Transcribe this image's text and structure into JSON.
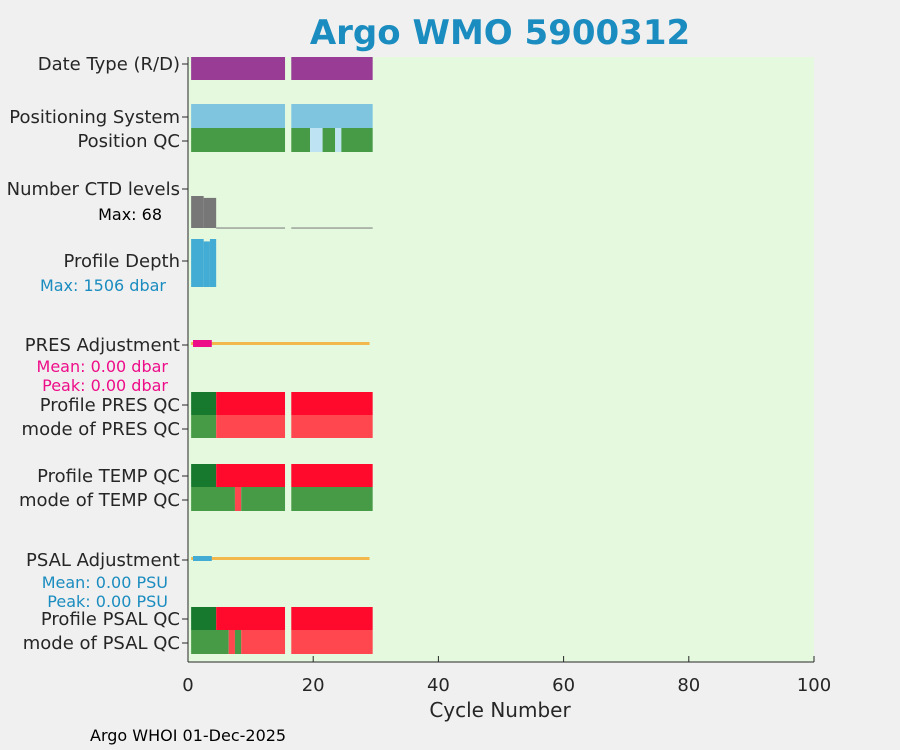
{
  "chart_data": {
    "type": "bar",
    "title": "Argo WMO 5900312",
    "xlabel": "Cycle Number",
    "xlim": [
      0,
      100
    ],
    "xticks": [
      0,
      20,
      40,
      60,
      80,
      100
    ],
    "grid": false,
    "legend": "none",
    "rows": [
      {
        "key": "date_type",
        "label": "Date Type (R/D)",
        "segments": [
          {
            "start": 0.5,
            "end": 15.5,
            "value": "R"
          },
          {
            "start": 16.5,
            "end": 29.5,
            "value": "R"
          }
        ]
      },
      {
        "key": "positioning_system",
        "label": "Positioning System",
        "segments": [
          {
            "start": 0.5,
            "end": 15.5,
            "value": "ARGOS"
          },
          {
            "start": 16.5,
            "end": 29.5,
            "value": "ARGOS"
          }
        ]
      },
      {
        "key": "position_qc",
        "label": "Position QC",
        "segments": [
          {
            "start": 0.5,
            "end": 15.5,
            "value": 1
          },
          {
            "start": 16.5,
            "end": 19.5,
            "value": 1
          },
          {
            "start": 19.5,
            "end": 21.5,
            "value": 8
          },
          {
            "start": 21.5,
            "end": 23.5,
            "value": 1
          },
          {
            "start": 23.5,
            "end": 24.5,
            "value": 8
          },
          {
            "start": 24.5,
            "end": 29.5,
            "value": 1
          }
        ]
      },
      {
        "key": "ctd_levels",
        "label": "Number CTD levels",
        "note": "Max: 68",
        "max": 68,
        "bars": [
          {
            "start": 0.5,
            "end": 2.5,
            "value": 68
          },
          {
            "start": 2.5,
            "end": 4.5,
            "value": 64
          },
          {
            "start": 4.5,
            "end": 15.5,
            "value": 1
          },
          {
            "start": 16.5,
            "end": 29.5,
            "value": 1
          }
        ]
      },
      {
        "key": "profile_depth",
        "label": "Profile Depth",
        "note": "Max: 1506 dbar",
        "max": 1506,
        "bars": [
          {
            "start": 0.5,
            "end": 2.5,
            "value": 1506
          },
          {
            "start": 2.5,
            "end": 3.5,
            "value": 1430
          },
          {
            "start": 3.5,
            "end": 4.5,
            "value": 1506
          }
        ]
      },
      {
        "key": "pres_adjustment",
        "label": "PRES Adjustment",
        "notes": [
          "Mean: 0.00 dbar",
          "Peak: 0.00 dbar"
        ],
        "line": {
          "start": 0.5,
          "end": 29.0
        },
        "marker": {
          "start": 0.8,
          "end": 3.8
        }
      },
      {
        "key": "profile_pres_qc",
        "label": "Profile PRES QC",
        "segments": [
          {
            "start": 0.5,
            "end": 4.5,
            "value": "A"
          },
          {
            "start": 4.5,
            "end": 15.5,
            "value": "F"
          },
          {
            "start": 16.5,
            "end": 29.5,
            "value": "F"
          }
        ]
      },
      {
        "key": "mode_pres_qc",
        "label": "mode of PRES QC",
        "segments": [
          {
            "start": 0.5,
            "end": 4.5,
            "value": 1
          },
          {
            "start": 4.5,
            "end": 15.5,
            "value": 4
          },
          {
            "start": 16.5,
            "end": 29.5,
            "value": 4
          }
        ]
      },
      {
        "key": "profile_temp_qc",
        "label": "Profile TEMP QC",
        "segments": [
          {
            "start": 0.5,
            "end": 4.5,
            "value": "A"
          },
          {
            "start": 4.5,
            "end": 15.5,
            "value": "F"
          },
          {
            "start": 16.5,
            "end": 29.5,
            "value": "F"
          }
        ]
      },
      {
        "key": "mode_temp_qc",
        "label": "mode of TEMP QC",
        "segments": [
          {
            "start": 0.5,
            "end": 7.5,
            "value": 1
          },
          {
            "start": 7.5,
            "end": 8.5,
            "value": 4
          },
          {
            "start": 8.5,
            "end": 15.5,
            "value": 1
          },
          {
            "start": 16.5,
            "end": 29.5,
            "value": 1
          }
        ]
      },
      {
        "key": "psal_adjustment",
        "label": "PSAL Adjustment",
        "notes": [
          "Mean: 0.00 PSU",
          "Peak: 0.00 PSU"
        ],
        "line": {
          "start": 0.5,
          "end": 29.0
        },
        "marker": {
          "start": 0.8,
          "end": 3.8
        }
      },
      {
        "key": "profile_psal_qc",
        "label": "Profile PSAL QC",
        "segments": [
          {
            "start": 0.5,
            "end": 4.5,
            "value": "A"
          },
          {
            "start": 4.5,
            "end": 15.5,
            "value": "F"
          },
          {
            "start": 16.5,
            "end": 29.5,
            "value": "F"
          }
        ]
      },
      {
        "key": "mode_psal_qc",
        "label": "mode of PSAL QC",
        "segments": [
          {
            "start": 0.5,
            "end": 6.5,
            "value": 1
          },
          {
            "start": 6.5,
            "end": 7.5,
            "value": 4
          },
          {
            "start": 7.5,
            "end": 8.5,
            "value": 1
          },
          {
            "start": 8.5,
            "end": 15.5,
            "value": 4
          },
          {
            "start": 16.5,
            "end": 29.5,
            "value": 4
          }
        ]
      }
    ]
  },
  "colors": {
    "background": "#f0f0f0",
    "plot_area": "#e5f9df",
    "title": "#1a8cbf",
    "date_type_R": "#983c96",
    "positioning_argos": "#7fc5e0",
    "qc_good": "#479b47",
    "qc_missing_or_interp": "#bee3f2",
    "qc_bad": "#ff4750",
    "profile_qc_A": "#16792e",
    "profile_qc_F": "#ff0a2d",
    "ctd_levels": "#777777",
    "profile_depth": "#42acd4",
    "adjustment_line": "#f2b84b",
    "pres_adjustment_marker": "#ee0d89",
    "psal_adjustment_marker": "#42acd4",
    "pres_note": "#ee0d89",
    "depth_note": "#1a8cbf",
    "psal_note": "#1a8cbf",
    "ctd_note": "#000000"
  },
  "footer": "Argo WHOI 01-Dec-2025"
}
